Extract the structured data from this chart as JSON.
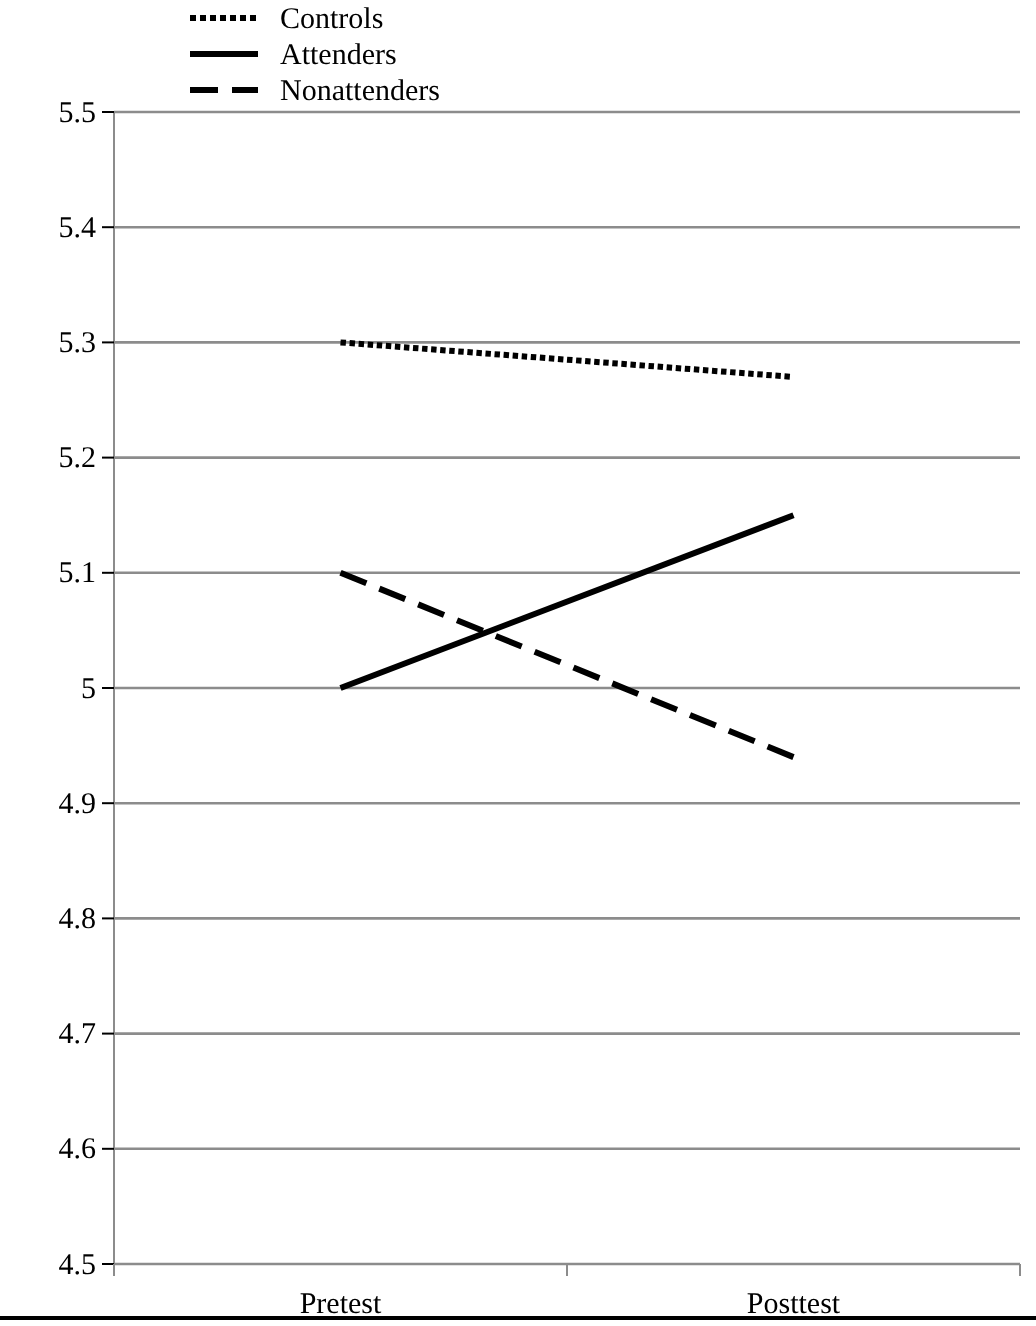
{
  "chart_data": {
    "type": "line",
    "categories": [
      "Pretest",
      "Posttest"
    ],
    "series": [
      {
        "name": "Controls",
        "color": "#000000",
        "values": [
          5.3,
          5.27
        ],
        "line_style": "dotted"
      },
      {
        "name": "Attenders",
        "color": "#000000",
        "values": [
          5.0,
          5.15
        ],
        "line_style": "solid"
      },
      {
        "name": "Nonattenders",
        "color": "#000000",
        "values": [
          5.1,
          4.94
        ],
        "line_style": "dashed"
      }
    ],
    "ylim": [
      4.5,
      5.5
    ],
    "yticks": [
      4.5,
      4.6,
      4.7,
      4.8,
      4.9,
      5,
      5.1,
      5.2,
      5.3,
      5.4,
      5.5
    ],
    "grid": "y",
    "legend": "top left",
    "marker": "none"
  }
}
